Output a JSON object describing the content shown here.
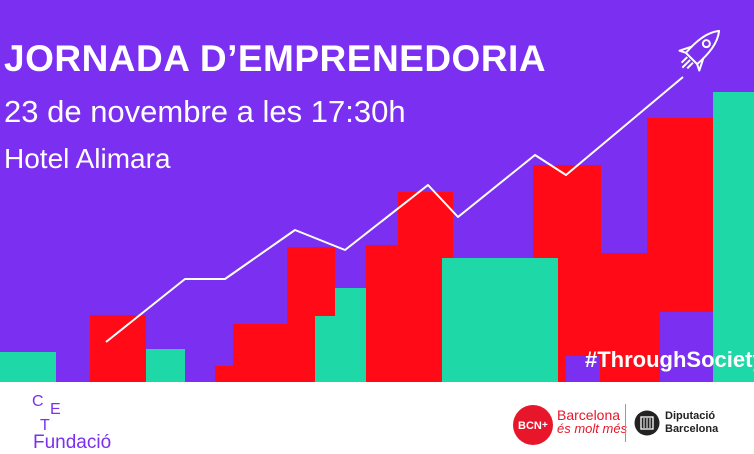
{
  "banner": {
    "title": "JORNADA D’EMPRENEDORIA",
    "date": "23 de novembre a les 17:30h",
    "venue": "Hotel Alimara",
    "hashtag": "#ThroughSociety",
    "colors": {
      "background": "#7b2ff0",
      "red": "#ff0a16",
      "teal": "#1fd8a8",
      "line": "#ffffff"
    }
  },
  "footer": {
    "cet_letters": [
      "C",
      "E",
      "T"
    ],
    "fundacio": "Fundació",
    "bcn_badge": "BCN",
    "bcn_line1": "Barcelona",
    "bcn_line2": "és molt més",
    "dip_line1": "Diputació",
    "dip_line2": "Barcelona",
    "icons": [
      "rocket-icon",
      "bcn-badge-icon",
      "diputacio-shield-icon"
    ]
  }
}
